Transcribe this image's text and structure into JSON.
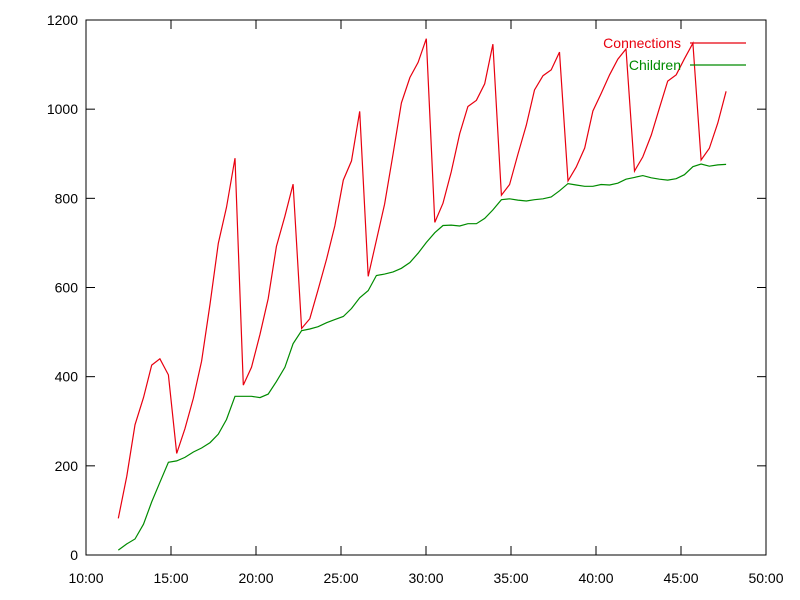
{
  "chart_data": {
    "type": "line",
    "title": "",
    "xlabel": "",
    "ylabel": "",
    "grid": false,
    "legend": "top-right",
    "xlim": [
      600,
      3000
    ],
    "ylim": [
      0,
      1200
    ],
    "x_ticks": [
      {
        "value": 600,
        "label": "10:00"
      },
      {
        "value": 900,
        "label": "15:00"
      },
      {
        "value": 1200,
        "label": "20:00"
      },
      {
        "value": 1500,
        "label": "25:00"
      },
      {
        "value": 1800,
        "label": "30:00"
      },
      {
        "value": 2100,
        "label": "35:00"
      },
      {
        "value": 2400,
        "label": "40:00"
      },
      {
        "value": 2700,
        "label": "45:00"
      },
      {
        "value": 3000,
        "label": "50:00"
      }
    ],
    "y_ticks": [
      {
        "value": 0,
        "label": "0"
      },
      {
        "value": 200,
        "label": "200"
      },
      {
        "value": 400,
        "label": "400"
      },
      {
        "value": 600,
        "label": "600"
      },
      {
        "value": 800,
        "label": "800"
      },
      {
        "value": 1000,
        "label": "1000"
      },
      {
        "value": 1200,
        "label": "1200"
      }
    ],
    "series": [
      {
        "name": "Connections",
        "color": "#e8000f",
        "points": [
          [
            714,
            82
          ],
          [
            744,
            177
          ],
          [
            773,
            292
          ],
          [
            803,
            353
          ],
          [
            832,
            426
          ],
          [
            861,
            440
          ],
          [
            891,
            404
          ],
          [
            920,
            228
          ],
          [
            949,
            283
          ],
          [
            979,
            352
          ],
          [
            1008,
            435
          ],
          [
            1038,
            564
          ],
          [
            1067,
            699
          ],
          [
            1096,
            780
          ],
          [
            1126,
            890
          ],
          [
            1155,
            381
          ],
          [
            1184,
            421
          ],
          [
            1214,
            495
          ],
          [
            1243,
            575
          ],
          [
            1272,
            692
          ],
          [
            1302,
            760
          ],
          [
            1331,
            832
          ],
          [
            1361,
            508
          ],
          [
            1390,
            530
          ],
          [
            1419,
            595
          ],
          [
            1449,
            664
          ],
          [
            1478,
            738
          ],
          [
            1508,
            841
          ],
          [
            1537,
            884
          ],
          [
            1566,
            995
          ],
          [
            1596,
            625
          ],
          [
            1625,
            706
          ],
          [
            1654,
            787
          ],
          [
            1684,
            900
          ],
          [
            1713,
            1014
          ],
          [
            1743,
            1071
          ],
          [
            1772,
            1105
          ],
          [
            1801,
            1158
          ],
          [
            1831,
            746
          ],
          [
            1860,
            789
          ],
          [
            1889,
            859
          ],
          [
            1919,
            945
          ],
          [
            1948,
            1006
          ],
          [
            1978,
            1020
          ],
          [
            2007,
            1057
          ],
          [
            2036,
            1146
          ],
          [
            2066,
            807
          ],
          [
            2095,
            831
          ],
          [
            2124,
            898
          ],
          [
            2154,
            964
          ],
          [
            2183,
            1043
          ],
          [
            2213,
            1075
          ],
          [
            2242,
            1088
          ],
          [
            2271,
            1128
          ],
          [
            2301,
            839
          ],
          [
            2330,
            870
          ],
          [
            2360,
            913
          ],
          [
            2389,
            996
          ],
          [
            2418,
            1035
          ],
          [
            2448,
            1077
          ],
          [
            2477,
            1112
          ],
          [
            2506,
            1135
          ],
          [
            2536,
            861
          ],
          [
            2565,
            893
          ],
          [
            2595,
            942
          ],
          [
            2624,
            1003
          ],
          [
            2653,
            1063
          ],
          [
            2683,
            1077
          ],
          [
            2712,
            1113
          ],
          [
            2742,
            1148
          ],
          [
            2771,
            886
          ],
          [
            2800,
            912
          ],
          [
            2830,
            969
          ],
          [
            2859,
            1040
          ]
        ]
      },
      {
        "name": "Children",
        "color": "#008b00",
        "points": [
          [
            714,
            11
          ],
          [
            744,
            25
          ],
          [
            773,
            36
          ],
          [
            803,
            69
          ],
          [
            832,
            119
          ],
          [
            861,
            163
          ],
          [
            891,
            208
          ],
          [
            920,
            211
          ],
          [
            949,
            219
          ],
          [
            979,
            231
          ],
          [
            1008,
            240
          ],
          [
            1038,
            252
          ],
          [
            1067,
            271
          ],
          [
            1096,
            304
          ],
          [
            1126,
            356
          ],
          [
            1155,
            356
          ],
          [
            1184,
            356
          ],
          [
            1214,
            353
          ],
          [
            1243,
            361
          ],
          [
            1272,
            389
          ],
          [
            1302,
            421
          ],
          [
            1331,
            474
          ],
          [
            1361,
            503
          ],
          [
            1390,
            507
          ],
          [
            1419,
            512
          ],
          [
            1449,
            521
          ],
          [
            1478,
            528
          ],
          [
            1508,
            535
          ],
          [
            1537,
            553
          ],
          [
            1566,
            577
          ],
          [
            1596,
            593
          ],
          [
            1625,
            627
          ],
          [
            1654,
            630
          ],
          [
            1684,
            635
          ],
          [
            1713,
            643
          ],
          [
            1743,
            656
          ],
          [
            1772,
            677
          ],
          [
            1801,
            701
          ],
          [
            1831,
            723
          ],
          [
            1860,
            739
          ],
          [
            1889,
            740
          ],
          [
            1919,
            738
          ],
          [
            1948,
            743
          ],
          [
            1978,
            743
          ],
          [
            2007,
            755
          ],
          [
            2036,
            774
          ],
          [
            2066,
            797
          ],
          [
            2095,
            799
          ],
          [
            2124,
            796
          ],
          [
            2154,
            794
          ],
          [
            2183,
            797
          ],
          [
            2213,
            799
          ],
          [
            2242,
            803
          ],
          [
            2271,
            817
          ],
          [
            2301,
            833
          ],
          [
            2330,
            830
          ],
          [
            2360,
            827
          ],
          [
            2389,
            827
          ],
          [
            2418,
            831
          ],
          [
            2448,
            830
          ],
          [
            2477,
            834
          ],
          [
            2506,
            843
          ],
          [
            2536,
            847
          ],
          [
            2565,
            851
          ],
          [
            2595,
            846
          ],
          [
            2624,
            843
          ],
          [
            2653,
            841
          ],
          [
            2683,
            844
          ],
          [
            2712,
            853
          ],
          [
            2742,
            871
          ],
          [
            2771,
            877
          ],
          [
            2800,
            872
          ],
          [
            2830,
            875
          ],
          [
            2859,
            876
          ]
        ]
      }
    ]
  }
}
